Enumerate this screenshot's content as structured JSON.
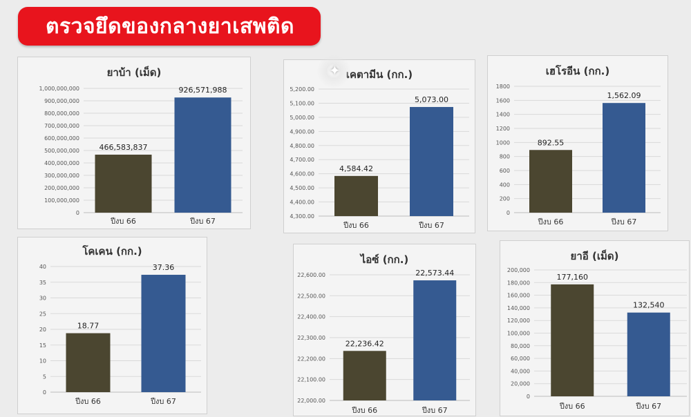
{
  "header": {
    "title": "ตรวจยึดของกลางยาเสพติด"
  },
  "colors": {
    "banner": "#e8141d",
    "bar_66": "#4b4630",
    "bar_67": "#355a91"
  },
  "chart_data": [
    {
      "type": "bar",
      "title": "ยาบ้า (เม็ด)",
      "categories": [
        "ปีงบ 66",
        "ปีงบ 67"
      ],
      "values": [
        466583837,
        926571988
      ],
      "value_labels": [
        "466,583,837",
        "926,571,988"
      ],
      "ylim": [
        0,
        1000000000
      ],
      "yticks": [
        "0",
        "100,000,000",
        "200,000,000",
        "300,000,000",
        "400,000,000",
        "500,000,000",
        "600,000,000",
        "700,000,000",
        "800,000,000",
        "900,000,000",
        "1,000,000,000"
      ],
      "grid": true
    },
    {
      "type": "bar",
      "title": "เคตามีน (กก.)",
      "categories": [
        "ปีงบ 66",
        "ปีงบ 67"
      ],
      "values": [
        4584.42,
        5073.0
      ],
      "value_labels": [
        "4,584.42",
        "5,073.00"
      ],
      "ylim": [
        4300,
        5200
      ],
      "yticks": [
        "4,300.00",
        "4,400.00",
        "4,500.00",
        "4,600.00",
        "4,700.00",
        "4,800.00",
        "4,900.00",
        "5,000.00",
        "5,100.00",
        "5,200.00"
      ],
      "grid": true
    },
    {
      "type": "bar",
      "title": "เฮโรอีน (กก.)",
      "categories": [
        "ปีงบ 66",
        "ปีงบ 67"
      ],
      "values": [
        892.55,
        1562.09
      ],
      "value_labels": [
        "892.55",
        "1,562.09"
      ],
      "ylim": [
        0,
        1800
      ],
      "yticks": [
        "0",
        "200",
        "400",
        "600",
        "800",
        "1000",
        "1200",
        "1400",
        "1600",
        "1800"
      ],
      "grid": true
    },
    {
      "type": "bar",
      "title": "โคเคน (กก.)",
      "categories": [
        "ปีงบ 66",
        "ปีงบ 67"
      ],
      "values": [
        18.77,
        37.36
      ],
      "value_labels": [
        "18.77",
        "37.36"
      ],
      "ylim": [
        0,
        40
      ],
      "yticks": [
        "0",
        "5",
        "10",
        "15",
        "20",
        "25",
        "30",
        "35",
        "40"
      ],
      "grid": true
    },
    {
      "type": "bar",
      "title": "ไอซ์ (กก.)",
      "categories": [
        "ปีงบ 66",
        "ปีงบ 67"
      ],
      "values": [
        22236.42,
        22573.44
      ],
      "value_labels": [
        "22,236.42",
        "22,573.44"
      ],
      "ylim": [
        22000,
        22600
      ],
      "yticks": [
        "22,000.00",
        "22,100.00",
        "22,200.00",
        "22,300.00",
        "22,400.00",
        "22,500.00",
        "22,600.00"
      ],
      "grid": true
    },
    {
      "type": "bar",
      "title": "ยาอี (เม็ด)",
      "categories": [
        "ปีงบ 66",
        "ปีงบ 67"
      ],
      "values": [
        177160,
        132540
      ],
      "value_labels": [
        "177,160",
        "132,540"
      ],
      "ylim": [
        0,
        200000
      ],
      "yticks": [
        "0",
        "20,000",
        "40,000",
        "60,000",
        "80,000",
        "100,000",
        "120,000",
        "140,000",
        "160,000",
        "180,000",
        "200,000"
      ],
      "grid": true
    }
  ]
}
